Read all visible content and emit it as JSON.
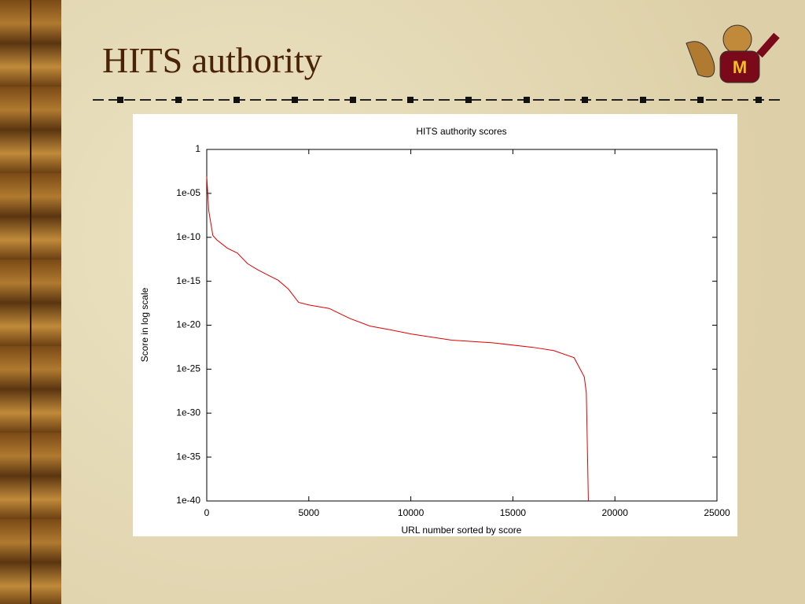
{
  "slide": {
    "title": "HITS authority"
  },
  "chart_data": {
    "type": "line",
    "title": "HITS authority scores",
    "x_label": "URL number sorted by score",
    "y_label": "Score in log scale",
    "log_y": true,
    "color": "#e00000",
    "x": [
      0,
      100,
      300,
      500,
      1000,
      1500,
      2000,
      2500,
      3000,
      3500,
      4000,
      4500,
      5000,
      6000,
      7000,
      8000,
      9000,
      10000,
      12000,
      14000,
      16000,
      17000,
      18000,
      18300,
      18500,
      18600,
      18700
    ],
    "values": [
      0.0008,
      1e-07,
      1.6e-10,
      5e-11,
      6e-12,
      1.6e-12,
      1e-13,
      2e-14,
      5e-15,
      1.3e-15,
      1.3e-16,
      4e-18,
      2e-18,
      8e-19,
      6e-20,
      8e-21,
      3e-21,
      1e-21,
      2e-22,
      1e-22,
      3e-23,
      1.3e-23,
      2e-24,
      1e-25,
      1.3e-26,
      2e-28,
      1e-40
    ],
    "xlim": [
      0,
      25000
    ],
    "xticks": [
      0,
      5000,
      10000,
      15000,
      20000,
      25000
    ],
    "ylim": [
      1e-40,
      1
    ],
    "yticks": [
      {
        "value": 1e-40,
        "label": "1e-40"
      },
      {
        "value": 1e-35,
        "label": "1e-35"
      },
      {
        "value": 1e-30,
        "label": "1e-30"
      },
      {
        "value": 1e-25,
        "label": "1e-25"
      },
      {
        "value": 1e-20,
        "label": "1e-20"
      },
      {
        "value": 1e-15,
        "label": "1e-15"
      },
      {
        "value": 1e-10,
        "label": "1e-10"
      },
      {
        "value": 1e-05,
        "label": "1e-05"
      },
      1
    ]
  }
}
